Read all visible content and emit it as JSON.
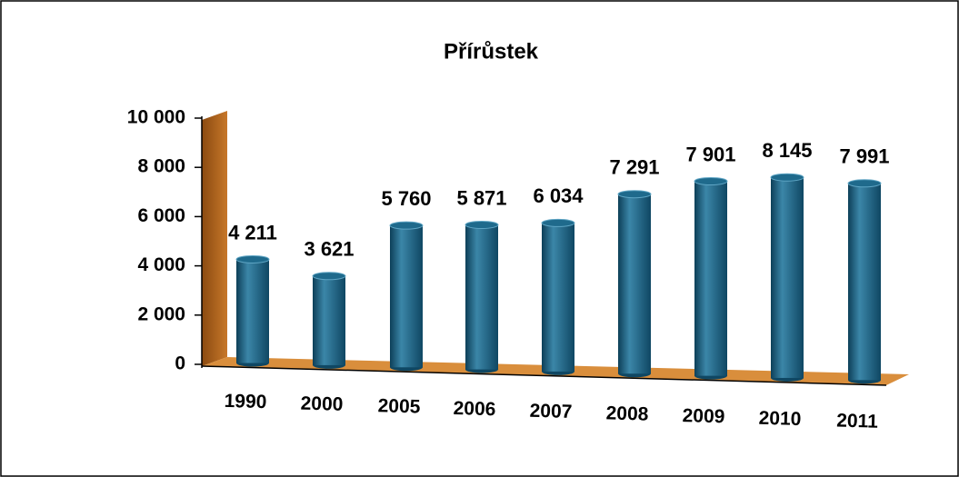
{
  "chart_data": {
    "type": "bar",
    "title": "Přírůstek",
    "categories": [
      "1990",
      "2000",
      "2005",
      "2006",
      "2007",
      "2008",
      "2009",
      "2010",
      "2011"
    ],
    "values": [
      4211,
      3621,
      5760,
      5871,
      6034,
      7291,
      7901,
      8145,
      7991
    ],
    "value_labels": [
      "4 211",
      "3 621",
      "5 760",
      "5 871",
      "6 034",
      "7 291",
      "7 901",
      "8 145",
      "7 991"
    ],
    "color": "#1f6a8c",
    "ylim": [
      0,
      10000
    ],
    "yticks": [
      0,
      {
        "value": 2000,
        "label": "2 000"
      },
      {
        "value": 4000,
        "label": "4 000"
      },
      {
        "value": 6000,
        "label": "6 000"
      },
      {
        "value": 8000,
        "label": "8 000"
      },
      {
        "value": 10000,
        "label": "10 000"
      }
    ]
  }
}
